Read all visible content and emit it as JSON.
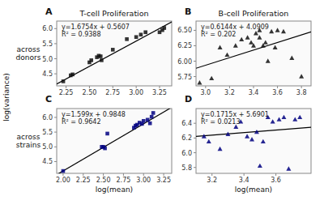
{
  "chart_data": [
    {
      "type": "scatter",
      "title": "T-cell Proliferation",
      "panel_label": "A",
      "annotations": [
        "y=1.6754x + 0.5607",
        "R² = 0.9388"
      ],
      "slope": 1.6754,
      "intercept": 0.5607,
      "xlim": [
        2.15,
        3.38
      ],
      "ylim": [
        4.1,
        6.25
      ],
      "xticks": [
        2.25,
        {
          "value": 2.5,
          "label": "2.50"
        },
        2.75,
        {
          "value": 3.0,
          "label": "3.00"
        },
        3.25
      ],
      "yticks": [
        4.5,
        {
          "value": 5.0,
          "label": "5.0"
        },
        5.5,
        {
          "value": 6.0,
          "label": "6.0"
        }
      ],
      "marker": "square",
      "color": "#111111",
      "x": [
        2.22,
        2.3,
        2.32,
        2.5,
        2.52,
        2.58,
        2.6,
        2.62,
        2.63,
        2.75,
        2.9,
        3.0,
        3.05,
        3.1,
        3.25,
        3.28,
        3.3
      ],
      "values": [
        4.25,
        4.45,
        4.48,
        4.88,
        4.95,
        5.05,
        5.1,
        5.08,
        4.95,
        5.3,
        5.65,
        5.72,
        5.8,
        5.88,
        5.88,
        5.95,
        6.02
      ]
    },
    {
      "type": "scatter",
      "title": "B-cell Proliferation",
      "panel_label": "B",
      "annotations": [
        "y=0.6144x + 4.0909",
        "R² = 0.202"
      ],
      "slope": 0.6144,
      "intercept": 4.0909,
      "xlim": [
        2.92,
        3.88
      ],
      "ylim": [
        5.6,
        6.65
      ],
      "xticks": [
        {
          "value": 3.0,
          "label": "3.0"
        },
        3.2,
        3.4,
        3.6,
        3.8
      ],
      "yticks": [
        5.75,
        {
          "value": 6.0,
          "label": "6.00"
        },
        6.25,
        {
          "value": 6.5,
          "label": "6.50"
        }
      ],
      "marker": "triangle",
      "color": "#111111",
      "x": [
        2.95,
        3.05,
        3.12,
        3.18,
        3.25,
        3.3,
        3.35,
        3.38,
        3.4,
        3.42,
        3.45,
        3.45,
        3.48,
        3.5,
        3.52,
        3.55,
        3.58,
        3.6,
        3.65,
        3.72,
        3.8
      ],
      "values": [
        5.65,
        5.72,
        6.22,
        6.1,
        6.25,
        6.35,
        6.38,
        6.3,
        6.25,
        6.45,
        6.38,
        6.5,
        6.25,
        6.3,
        6.0,
        6.48,
        6.22,
        6.5,
        6.48,
        6.05,
        5.75
      ]
    },
    {
      "type": "scatter",
      "panel_label": "C",
      "xlabel": "log(mean)",
      "annotations": [
        "y=1.599x + 0.9848",
        "R² = 0.9642"
      ],
      "slope": 1.599,
      "intercept": 0.9848,
      "xlim": [
        1.92,
        3.35
      ],
      "ylim": [
        4.1,
        6.3
      ],
      "xticks": [
        {
          "value": 2.0,
          "label": "2.00"
        },
        2.25,
        {
          "value": 2.5,
          "label": "2.50"
        },
        2.75,
        {
          "value": 3.0,
          "label": "3.00"
        },
        3.25
      ],
      "yticks": [
        4.5,
        {
          "value": 5.0,
          "label": "5.0"
        },
        5.5,
        {
          "value": 6.0,
          "label": "6.0"
        }
      ],
      "marker": "square",
      "color": "#000080",
      "x": [
        2.0,
        2.48,
        2.5,
        2.52,
        2.55,
        2.88,
        2.9,
        2.92,
        2.95,
        2.98,
        3.0,
        3.05,
        3.08,
        3.1,
        3.12
      ],
      "values": [
        4.18,
        5.0,
        5.0,
        4.95,
        5.45,
        5.65,
        5.72,
        5.75,
        5.82,
        5.78,
        5.88,
        5.92,
        5.8,
        6.02,
        6.15
      ]
    },
    {
      "type": "scatter",
      "panel_label": "D",
      "xlabel": "log(mean)",
      "annotations": [
        "y=0.1715x + 5.6901",
        "R² = 0.0213"
      ],
      "slope": 0.1715,
      "intercept": 5.6901,
      "xlim": [
        3.1,
        3.82
      ],
      "ylim": [
        5.72,
        6.6
      ],
      "xticks": [
        3.2,
        3.4,
        3.6
      ],
      "yticks": [
        5.8,
        {
          "value": 6.0,
          "label": "6.0"
        },
        6.2,
        6.4
      ],
      "marker": "triangle",
      "color": "#000080",
      "x": [
        3.15,
        3.18,
        3.25,
        3.3,
        3.35,
        3.38,
        3.42,
        3.45,
        3.48,
        3.5,
        3.52,
        3.55,
        3.58,
        3.62,
        3.65,
        3.68,
        3.72,
        3.75
      ],
      "values": [
        6.22,
        6.15,
        6.05,
        6.25,
        6.35,
        6.42,
        6.22,
        6.18,
        6.28,
        5.82,
        6.15,
        6.48,
        6.42,
        6.45,
        6.48,
        5.78,
        6.45,
        6.48
      ]
    }
  ],
  "ylabel": "log(variance)",
  "annotations": [
    "across\ndonors",
    "across\nstrains"
  ]
}
